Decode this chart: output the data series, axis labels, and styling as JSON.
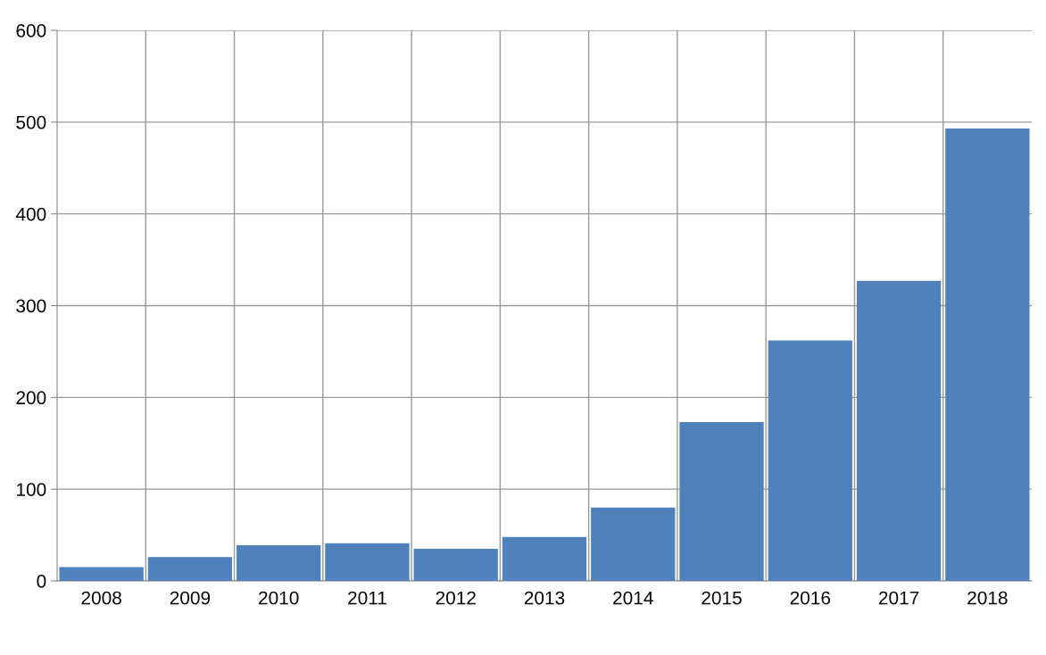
{
  "chart_data": {
    "type": "bar",
    "categories": [
      "2008",
      "2009",
      "2010",
      "2011",
      "2012",
      "2013",
      "2014",
      "2015",
      "2016",
      "2017",
      "2018"
    ],
    "values": [
      15,
      26,
      39,
      41,
      35,
      48,
      80,
      173,
      262,
      327,
      493
    ],
    "color": "#4f81bd",
    "ylim": [
      0,
      600
    ],
    "yticks": [
      0,
      100,
      200,
      300,
      400,
      500,
      600
    ],
    "grid": true
  }
}
